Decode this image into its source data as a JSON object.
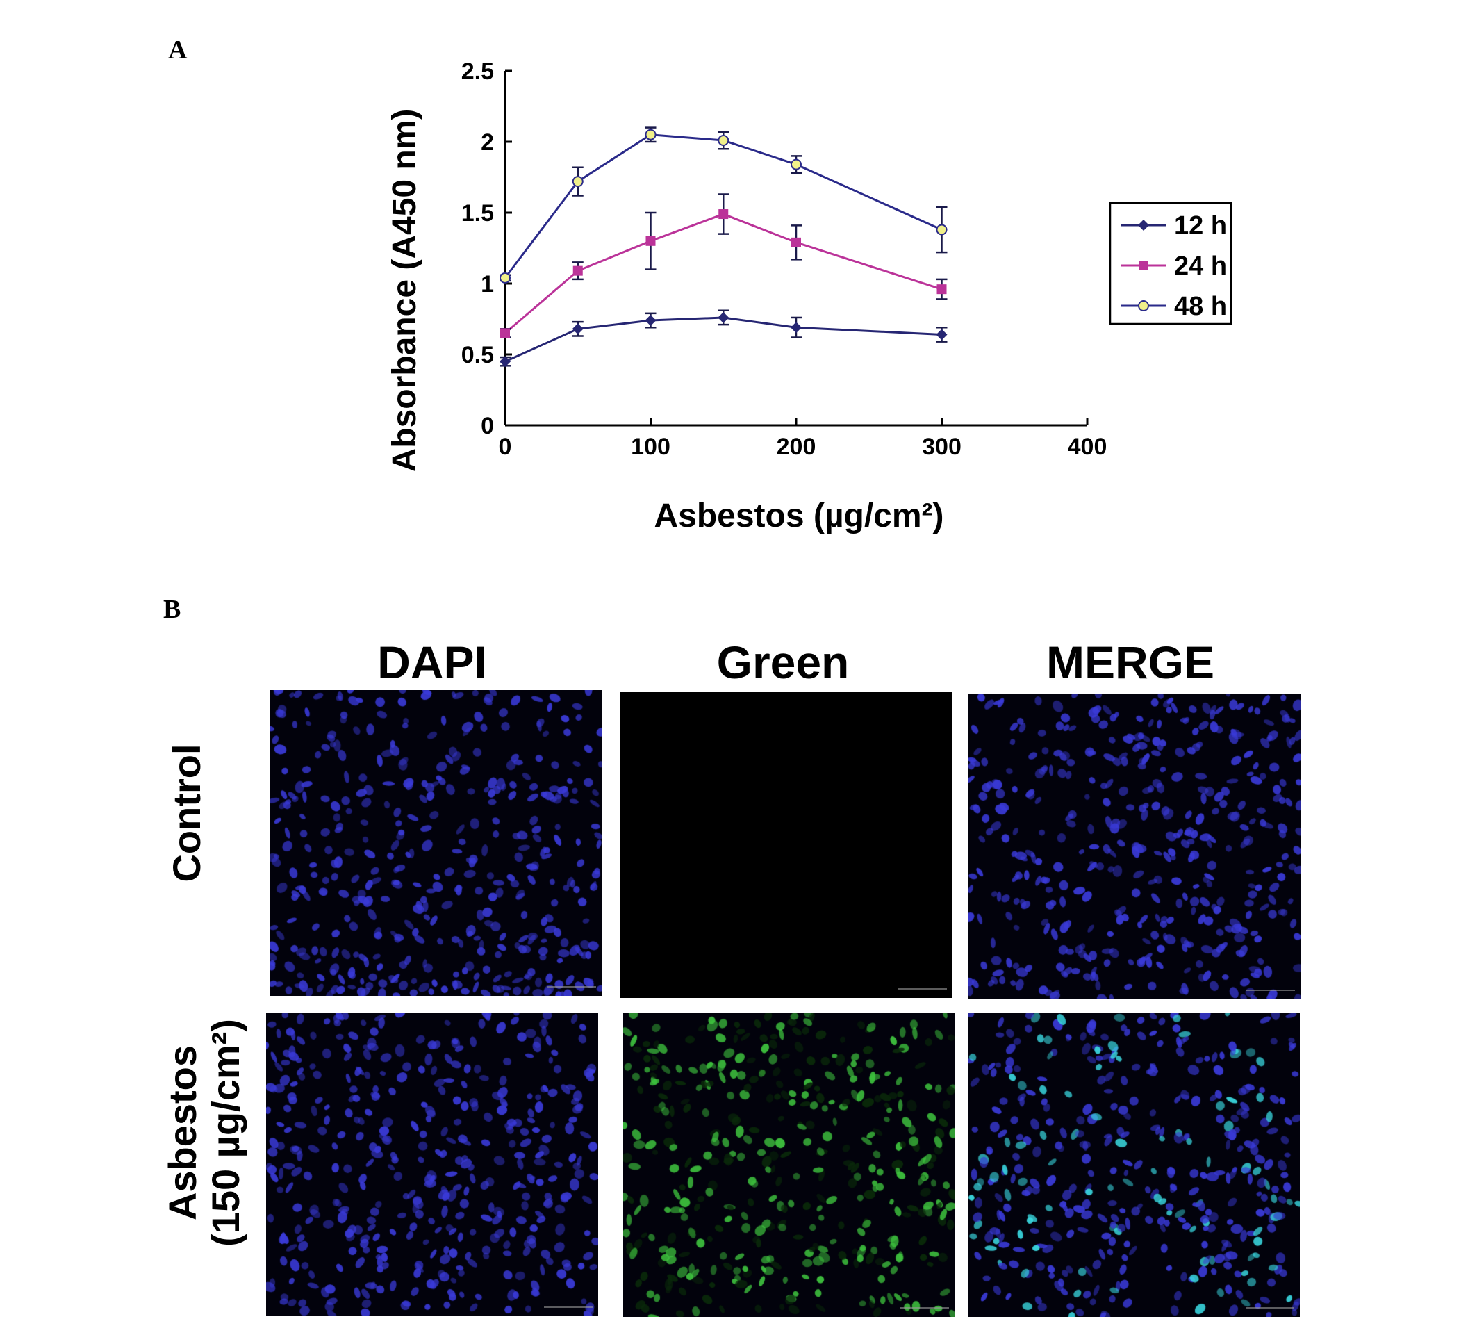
{
  "panel_a": {
    "letter": "A"
  },
  "panel_b": {
    "letter": "B"
  },
  "chart_data": {
    "type": "line",
    "title": "",
    "xlabel": "Asbestos (µg/cm²)",
    "ylabel": "Absorbance (A450 nm)",
    "xlim": [
      0,
      400
    ],
    "ylim": [
      0,
      2.5
    ],
    "xticks": [
      0,
      100,
      200,
      300,
      400
    ],
    "xtick_labels": [
      "0",
      "100",
      "200",
      "300",
      "400"
    ],
    "yticks": [
      0,
      0.5,
      1,
      1.5,
      2,
      2.5
    ],
    "ytick_labels": [
      "0",
      "0.5",
      "1",
      "1.5",
      "2",
      "2.5"
    ],
    "grid": false,
    "legend_position": "right",
    "x": [
      0,
      50,
      100,
      150,
      200,
      300
    ],
    "series": [
      {
        "name": "12 h",
        "color": "#262673",
        "marker": "diamond",
        "values": [
          0.45,
          0.68,
          0.74,
          0.76,
          0.69,
          0.64
        ],
        "errors": [
          0.03,
          0.05,
          0.05,
          0.05,
          0.07,
          0.05
        ]
      },
      {
        "name": "24 h",
        "color": "#bb3399",
        "marker": "square",
        "values": [
          0.65,
          1.09,
          1.3,
          1.49,
          1.29,
          0.96
        ],
        "errors": [
          0.03,
          0.06,
          0.2,
          0.14,
          0.12,
          0.07
        ]
      },
      {
        "name": "48 h",
        "color": "#2a2a8a",
        "marker": "circle",
        "values": [
          1.04,
          1.72,
          2.05,
          2.01,
          1.84,
          1.38
        ],
        "errors": [
          0.02,
          0.1,
          0.05,
          0.06,
          0.06,
          0.16
        ]
      }
    ]
  },
  "microscopy": {
    "columns": [
      "DAPI",
      "Green",
      "MERGE"
    ],
    "rows": [
      {
        "label": "Control",
        "label_line2": ""
      },
      {
        "label": "Asbestos",
        "label_line2": "(150 µg/cm²)"
      }
    ],
    "colors": {
      "nucleus_blue": "#3a3ad8",
      "green_signal": "#3ec23e",
      "merge_cyan": "#3ad8e0",
      "background": "#02020c"
    }
  }
}
